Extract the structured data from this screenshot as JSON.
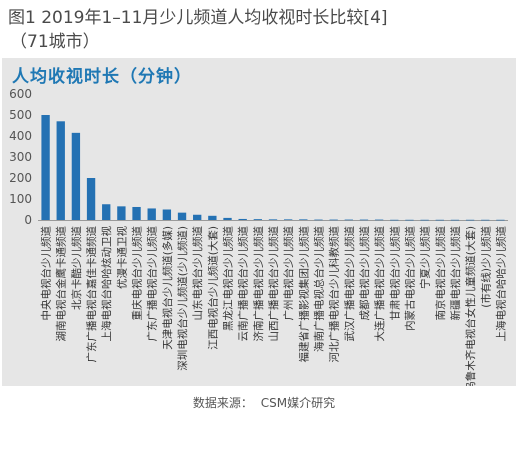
{
  "figure": {
    "title_line1": "图1  2019年1–11月少儿频道人均收视时长比较[4]",
    "title_line2": "（71城市）"
  },
  "panel_title": "人均收视时长（分钟）",
  "source": {
    "label": "数据来源：",
    "value": "CSM媒介研究"
  },
  "chart_data": {
    "type": "bar",
    "title": "人均收视时长（分钟）",
    "ylim": [
      0,
      600
    ],
    "yticks": [
      0,
      100,
      200,
      300,
      400,
      500,
      600
    ],
    "grid": false,
    "bar_color": "#2471b3",
    "categories": [
      "中央电视台少儿频道",
      "湖南电视台金鹰卡通频道",
      "北京卡酷少儿频道",
      "广东广播电视台嘉佳卡通频道",
      "上海电视台哈哈炫动卫视",
      "优漫卡通卫视",
      "重庆电视台少儿频道",
      "广东广播电视台少儿频道",
      "天津电视台少儿频道(多媒)",
      "深圳电视台少儿频道(少儿频道)",
      "山东电视台少儿频道",
      "江西电视台少儿频道(大套)",
      "黑龙江电视台少儿频道",
      "云南广播电视台少儿频道",
      "济南广播电视台少儿频道",
      "山西广播电视台少儿频道",
      "广州电视台少儿频道",
      "福建省广播影视集团少儿频道",
      "海南广播电视总台少儿频道",
      "河北广播电视台少儿科教频道",
      "武汉广播电视台少儿频道",
      "成都电视台少儿频道",
      "大连广播电视台少儿频道",
      "甘肃电视台少儿频道",
      "内蒙古电视台少儿频道",
      "宁夏少儿频道",
      "南京电视台少儿频道",
      "新疆电视台少儿频道",
      "乌鲁木齐电视台女性儿童频道(大套)",
      "(市有线)少儿频道",
      "上海电视台哈哈少儿频道"
    ],
    "values": [
      500,
      470,
      415,
      200,
      75,
      65,
      62,
      55,
      50,
      35,
      25,
      20,
      10,
      5,
      4,
      3,
      3,
      3,
      2,
      2,
      2,
      2,
      2,
      1,
      1,
      1,
      1,
      1,
      1,
      1,
      1
    ]
  }
}
